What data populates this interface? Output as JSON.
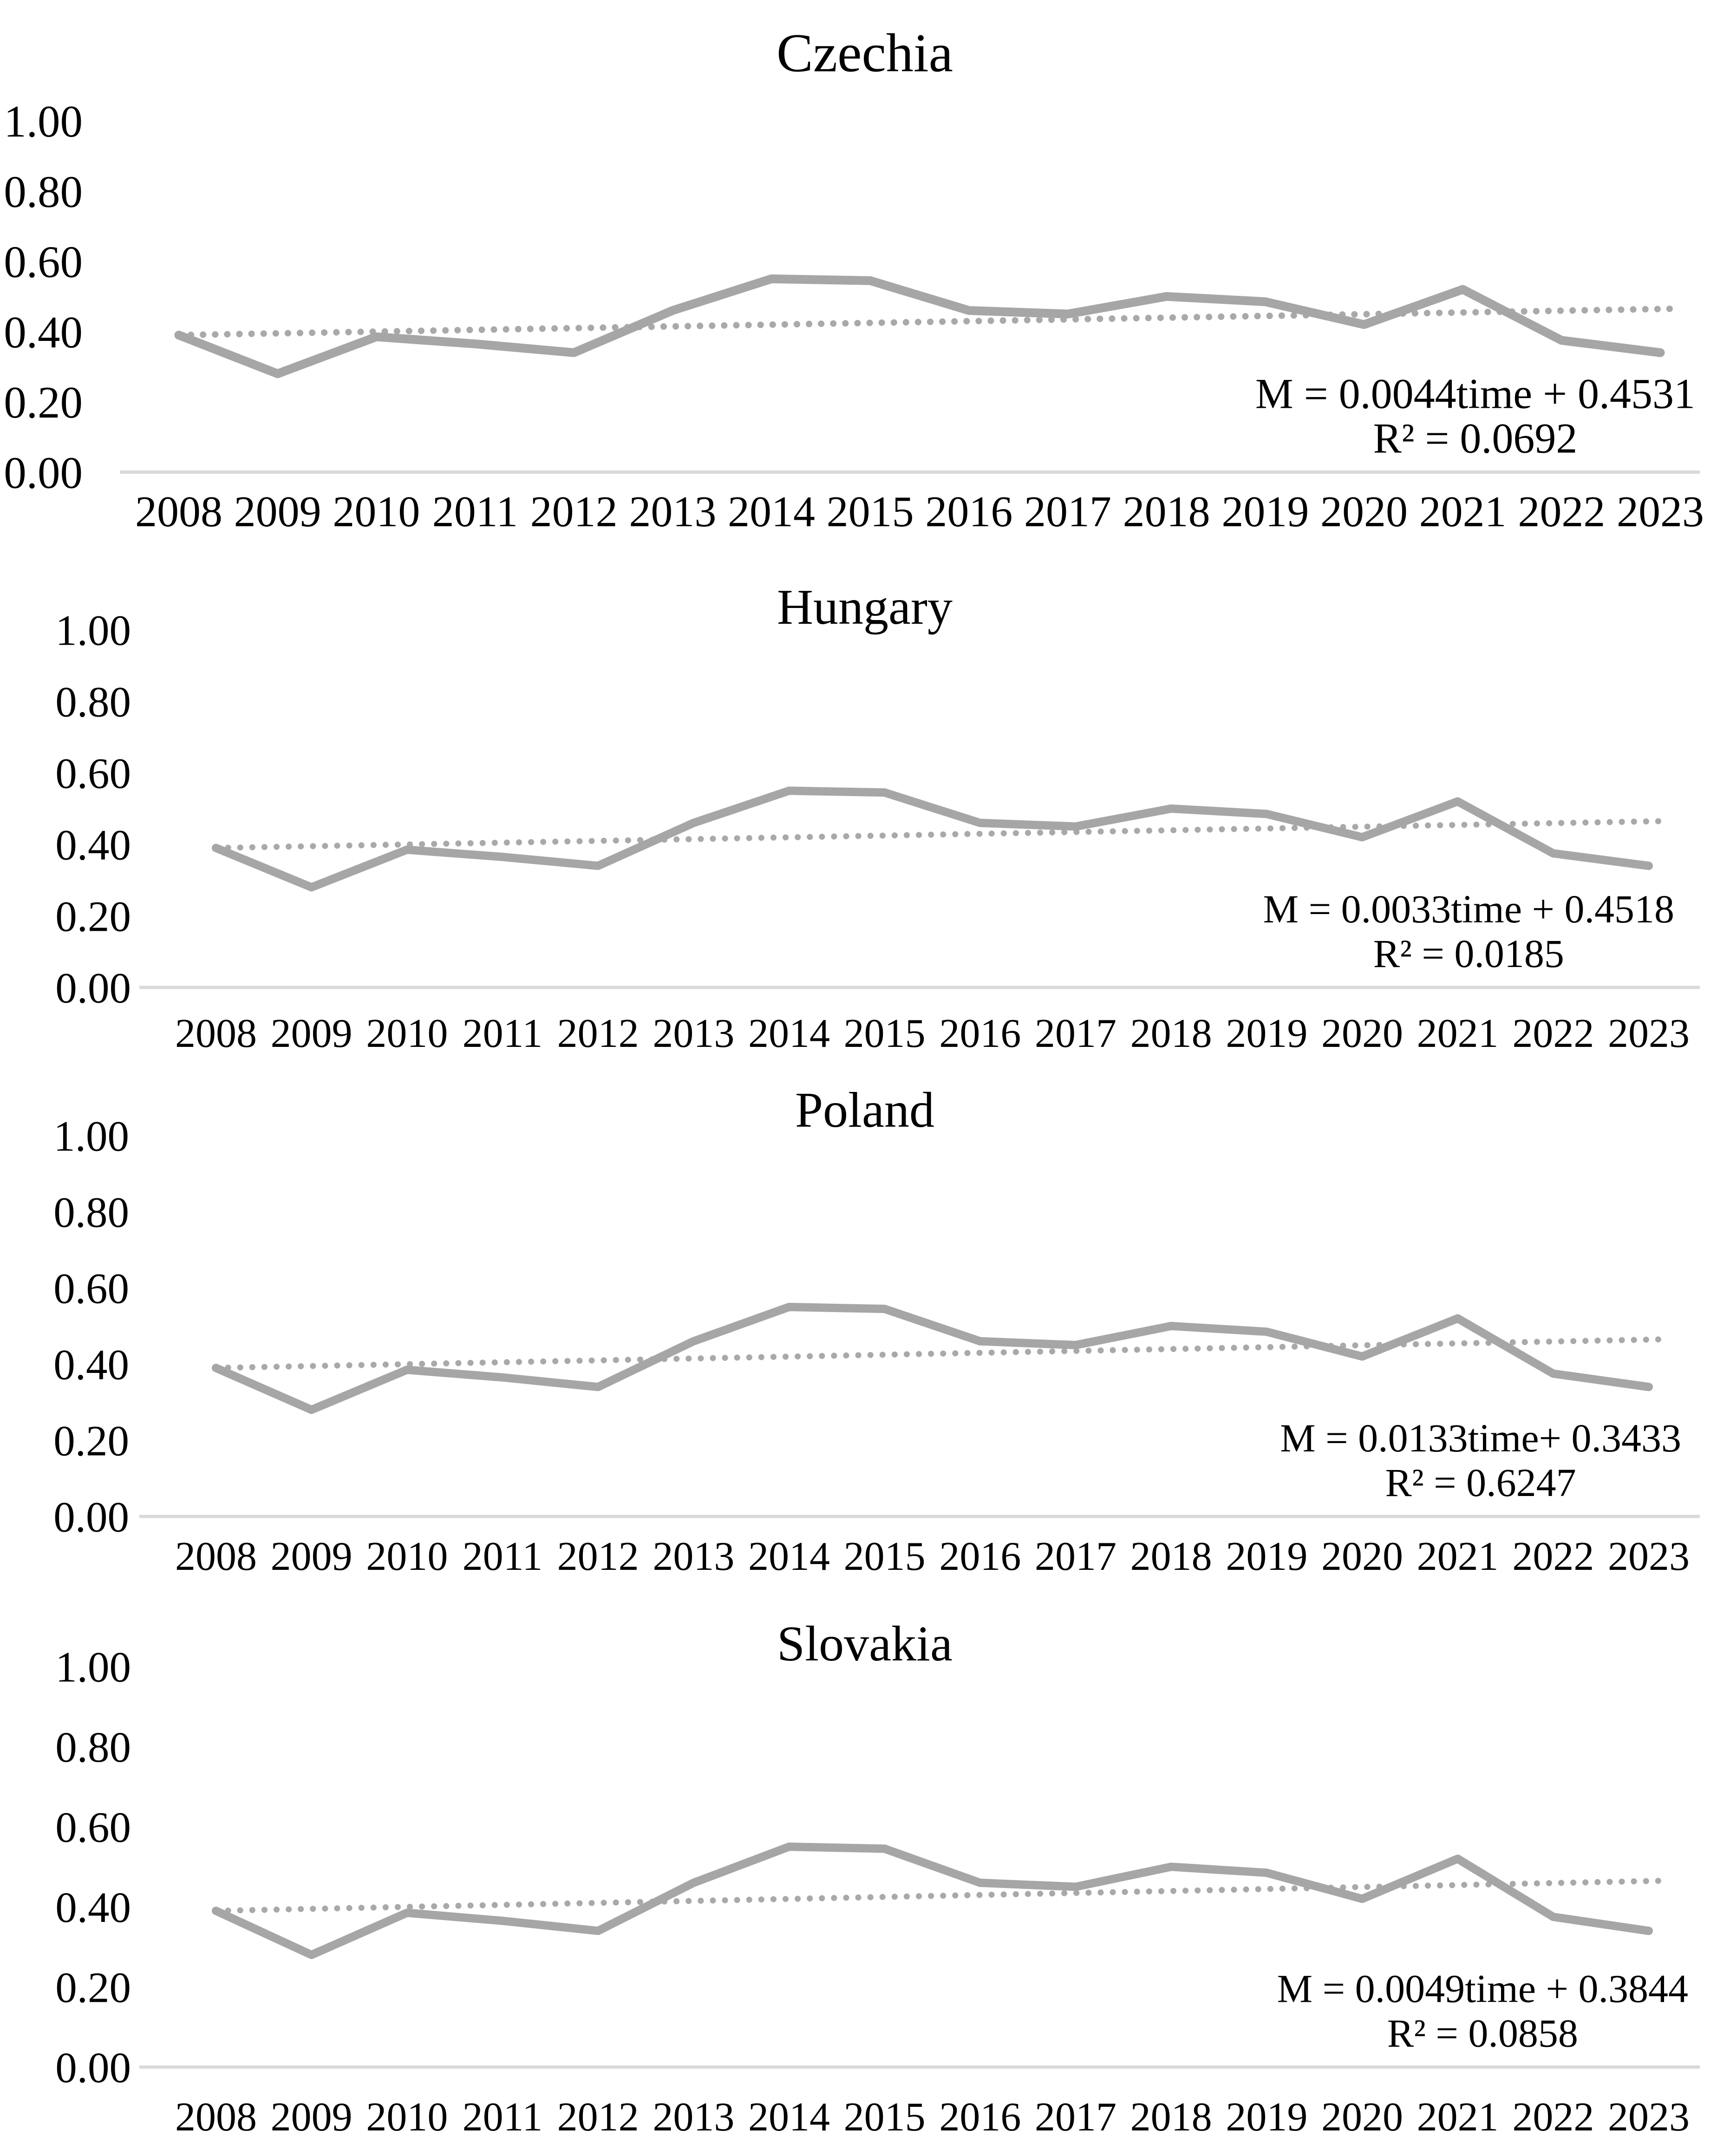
{
  "figure": {
    "description": "Four stacked line charts of mean value M per year with linear trendlines",
    "background": "#ffffff"
  },
  "colors": {
    "series_line": "#a6a6a6",
    "trend_line": "#a9a9a9",
    "axis_baseline": "#d9d9d9",
    "text": "#000000",
    "background": "#ffffff"
  },
  "chart_data": [
    {
      "type": "line",
      "title": "Czechia",
      "x": [
        2008,
        2009,
        2010,
        2011,
        2012,
        2013,
        2014,
        2015,
        2016,
        2017,
        2018,
        2019,
        2020,
        2021,
        2022,
        2023
      ],
      "ylim": [
        0,
        1
      ],
      "yticks": [
        "1.00",
        "0.80",
        "0.60",
        "0.40",
        "0.20",
        "0.00"
      ],
      "grid": false,
      "legend": "none",
      "series": [
        {
          "name": "M",
          "style": "solid-gray",
          "values": [
            0.39,
            0.28,
            0.385,
            0.365,
            0.34,
            0.46,
            0.55,
            0.545,
            0.46,
            0.45,
            0.5,
            0.485,
            0.42,
            0.52,
            0.375,
            0.34
          ]
        },
        {
          "name": "Linear (M)",
          "style": "dotted-gray",
          "trend_start": 0.39,
          "trend_end": 0.465
        }
      ],
      "equation": "M = 0.0044time + 0.4531",
      "r_squared": "R² = 0.0692"
    },
    {
      "type": "line",
      "title": "Hungary",
      "x": [
        2008,
        2009,
        2010,
        2011,
        2012,
        2013,
        2014,
        2015,
        2016,
        2017,
        2018,
        2019,
        2020,
        2021,
        2022,
        2023
      ],
      "ylim": [
        0,
        1
      ],
      "yticks": [
        "1.00",
        "0.80",
        "0.60",
        "0.40",
        "0.20",
        "0.00"
      ],
      "grid": false,
      "legend": "none",
      "series": [
        {
          "name": "M",
          "style": "solid-gray",
          "values": [
            0.39,
            0.28,
            0.385,
            0.365,
            0.34,
            0.46,
            0.55,
            0.545,
            0.46,
            0.45,
            0.5,
            0.485,
            0.42,
            0.52,
            0.375,
            0.34
          ]
        },
        {
          "name": "Linear (M)",
          "style": "dotted-gray",
          "trend_start": 0.39,
          "trend_end": 0.465
        }
      ],
      "equation": "M = 0.0033time + 0.4518",
      "r_squared": "R² = 0.0185"
    },
    {
      "type": "line",
      "title": "Poland",
      "x": [
        2008,
        2009,
        2010,
        2011,
        2012,
        2013,
        2014,
        2015,
        2016,
        2017,
        2018,
        2019,
        2020,
        2021,
        2022,
        2023
      ],
      "ylim": [
        0,
        1
      ],
      "yticks": [
        "1.00",
        "0.80",
        "0.60",
        "0.40",
        "0.20",
        "0.00"
      ],
      "grid": false,
      "legend": "none",
      "series": [
        {
          "name": "M",
          "style": "solid-gray",
          "values": [
            0.39,
            0.28,
            0.385,
            0.365,
            0.34,
            0.46,
            0.55,
            0.545,
            0.46,
            0.45,
            0.5,
            0.485,
            0.42,
            0.52,
            0.375,
            0.34
          ]
        },
        {
          "name": "Linear (M)",
          "style": "dotted-gray",
          "trend_start": 0.39,
          "trend_end": 0.465
        }
      ],
      "equation": "M = 0.0133time+ 0.3433",
      "r_squared": "R² = 0.6247"
    },
    {
      "type": "line",
      "title": "Slovakia",
      "x": [
        2008,
        2009,
        2010,
        2011,
        2012,
        2013,
        2014,
        2015,
        2016,
        2017,
        2018,
        2019,
        2020,
        2021,
        2022,
        2023
      ],
      "ylim": [
        0,
        1
      ],
      "yticks": [
        "1.00",
        "0.80",
        "0.60",
        "0.40",
        "0.20",
        "0.00"
      ],
      "grid": false,
      "legend": "none",
      "series": [
        {
          "name": "M",
          "style": "solid-gray",
          "values": [
            0.39,
            0.28,
            0.385,
            0.365,
            0.34,
            0.46,
            0.55,
            0.545,
            0.46,
            0.45,
            0.5,
            0.485,
            0.42,
            0.52,
            0.375,
            0.34
          ]
        },
        {
          "name": "Linear (M)",
          "style": "dotted-gray",
          "trend_start": 0.39,
          "trend_end": 0.465
        }
      ],
      "equation": "M = 0.0049time + 0.3844",
      "r_squared": "R² = 0.0858"
    }
  ]
}
